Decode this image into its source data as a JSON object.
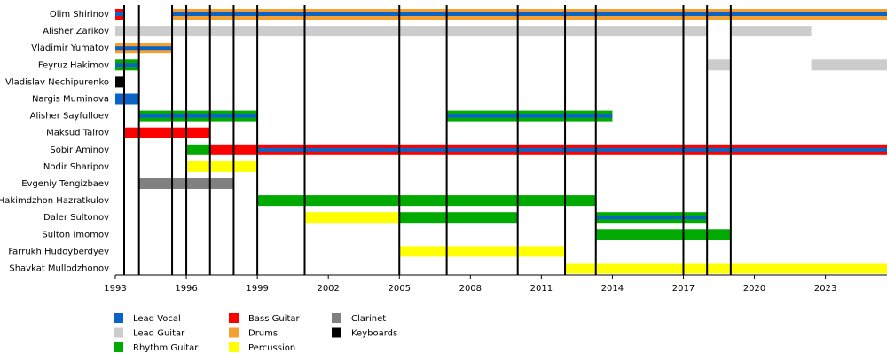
{
  "chart_data": {
    "type": "timeline",
    "xlim": [
      1993,
      2025.6
    ],
    "xticks": [
      1993,
      1996,
      1999,
      2002,
      2005,
      2008,
      2011,
      2014,
      2017,
      2020,
      2023
    ],
    "markers": [
      1993.375,
      1994,
      1995.4,
      1996,
      1997,
      1998,
      1999,
      2001,
      2005,
      2007,
      2010,
      2012,
      2013.3,
      2017,
      2018,
      2019
    ],
    "roles": [
      {
        "name": "Lead Vocal",
        "color": "#0a64c8"
      },
      {
        "name": "Lead Guitar",
        "color": "#cccccc"
      },
      {
        "name": "Rhythm Guitar",
        "color": "#00aa00"
      },
      {
        "name": "Bass Guitar",
        "color": "#ff0000"
      },
      {
        "name": "Drums",
        "color": "#f5a030"
      },
      {
        "name": "Percussion",
        "color": "#ffff00"
      },
      {
        "name": "Clarinet",
        "color": "#808080"
      },
      {
        "name": "Keyboards",
        "color": "#000000"
      }
    ],
    "members": [
      {
        "name": "Olim Shirinov",
        "periods": [
          {
            "start": 1993,
            "end": 1993.375,
            "role": "Bass Guitar",
            "stripe": "Lead Vocal"
          },
          {
            "start": 1995.4,
            "end": 2025.6,
            "role": "Drums",
            "stripe": "Lead Vocal"
          }
        ]
      },
      {
        "name": "Alisher Zarikov",
        "periods": [
          {
            "start": 1993,
            "end": 2018,
            "role": "Lead Guitar"
          },
          {
            "start": 2019,
            "end": 2022.4,
            "role": "Lead Guitar"
          }
        ]
      },
      {
        "name": "Vladimir Yumatov",
        "periods": [
          {
            "start": 1993,
            "end": 1995.4,
            "role": "Drums",
            "stripe": "Lead Vocal"
          }
        ]
      },
      {
        "name": "Feyruz Hakimov",
        "periods": [
          {
            "start": 1993,
            "end": 1994,
            "role": "Rhythm Guitar",
            "stripe": "Lead Vocal"
          },
          {
            "start": 2018,
            "end": 2019,
            "role": "Lead Guitar"
          },
          {
            "start": 2022.4,
            "end": 2025.6,
            "role": "Lead Guitar"
          }
        ]
      },
      {
        "name": "Vladislav Nechipurenko",
        "periods": [
          {
            "start": 1993,
            "end": 1993.375,
            "role": "Keyboards"
          }
        ]
      },
      {
        "name": "Nargis Muminova",
        "periods": [
          {
            "start": 1993,
            "end": 1994,
            "role": "Lead Vocal"
          }
        ]
      },
      {
        "name": "Alisher Sayfulloev",
        "periods": [
          {
            "start": 1994,
            "end": 1999,
            "role": "Rhythm Guitar",
            "stripe": "Lead Vocal"
          },
          {
            "start": 2007,
            "end": 2014,
            "role": "Rhythm Guitar",
            "stripe": "Lead Vocal"
          }
        ]
      },
      {
        "name": "Maksud Tairov",
        "periods": [
          {
            "start": 1993.375,
            "end": 1997,
            "role": "Bass Guitar"
          }
        ]
      },
      {
        "name": "Sobir Aminov",
        "periods": [
          {
            "start": 1996,
            "end": 1997,
            "role": "Rhythm Guitar"
          },
          {
            "start": 1997,
            "end": 1999,
            "role": "Bass Guitar"
          },
          {
            "start": 1999,
            "end": 2025.6,
            "role": "Bass Guitar",
            "stripe": "Lead Vocal"
          }
        ]
      },
      {
        "name": "Nodir Sharipov",
        "periods": [
          {
            "start": 1996,
            "end": 1999,
            "role": "Percussion"
          }
        ]
      },
      {
        "name": "Evgeniy Tengizbaev",
        "periods": [
          {
            "start": 1994,
            "end": 1998,
            "role": "Clarinet"
          }
        ]
      },
      {
        "name": "Hakimdzhon Hazratkulov",
        "periods": [
          {
            "start": 1999,
            "end": 2013.3,
            "role": "Rhythm Guitar"
          }
        ]
      },
      {
        "name": "Daler Sultonov",
        "periods": [
          {
            "start": 2001,
            "end": 2005,
            "role": "Percussion"
          },
          {
            "start": 2005,
            "end": 2010,
            "role": "Rhythm Guitar"
          },
          {
            "start": 2013.3,
            "end": 2018,
            "role": "Rhythm Guitar",
            "stripe": "Lead Vocal"
          }
        ]
      },
      {
        "name": "Sulton Imomov",
        "periods": [
          {
            "start": 2013.3,
            "end": 2019,
            "role": "Rhythm Guitar"
          }
        ]
      },
      {
        "name": "Farrukh Hudoyberdyev",
        "periods": [
          {
            "start": 2005,
            "end": 2012,
            "role": "Percussion"
          }
        ]
      },
      {
        "name": "Shavkat Mullodzhonov",
        "periods": [
          {
            "start": 2012,
            "end": 2025.6,
            "role": "Percussion"
          }
        ]
      }
    ]
  }
}
